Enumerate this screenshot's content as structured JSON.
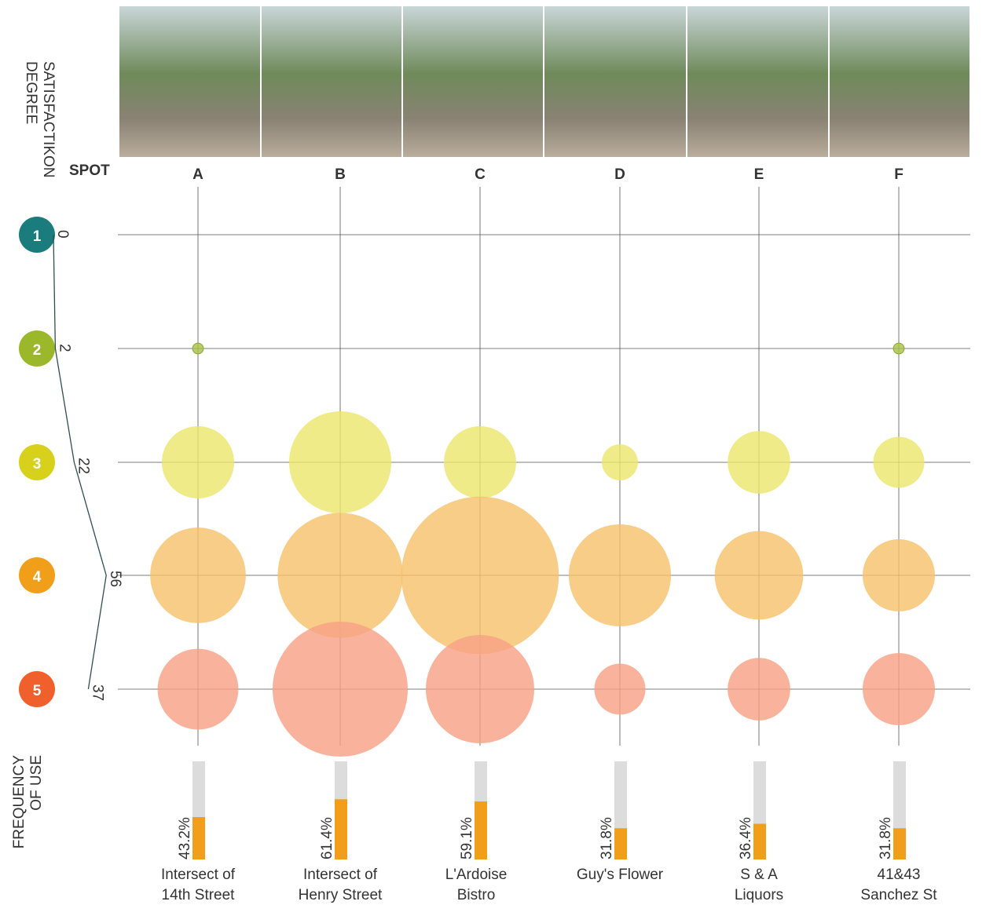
{
  "chart_data": [
    {
      "type": "bubble",
      "y_axis_label": [
        "SATISFACTIKON",
        "DEGREE"
      ],
      "x_axis_label": "SPOT",
      "categories": [
        "A",
        "B",
        "C",
        "D",
        "E",
        "F"
      ],
      "levels": [
        {
          "label": "1",
          "color": "#1b7c7e"
        },
        {
          "label": "2",
          "color": "#9bb82a"
        },
        {
          "label": "3",
          "color": "#d8d11c"
        },
        {
          "label": "4",
          "color": "#f19f1b"
        },
        {
          "label": "5",
          "color": "#f0602c"
        }
      ],
      "totals": [
        0,
        2,
        22,
        56,
        37
      ],
      "series": [
        {
          "color": "#a9c046",
          "values": [
            0,
            0,
            0,
            0,
            0,
            0
          ]
        },
        {
          "color": "#a9c046",
          "values": [
            1,
            0,
            0,
            0,
            0,
            1
          ]
        },
        {
          "color": "#ebe66c",
          "values": [
            4,
            8,
            4,
            1,
            3,
            2
          ]
        },
        {
          "color": "#f6c06a",
          "values": [
            7,
            12,
            19,
            8,
            6,
            4
          ]
        },
        {
          "color": "#f8a084",
          "values": [
            5,
            14,
            9,
            2,
            3,
            4
          ]
        }
      ]
    },
    {
      "type": "bar",
      "title": [
        "FREQUENCY",
        "OF USE"
      ],
      "categories": [
        [
          "Intersect of",
          "14th Street"
        ],
        [
          "Intersect of",
          "Henry Street"
        ],
        [
          "L'Ardoise",
          "Bistro"
        ],
        [
          "Guy's Flower"
        ],
        [
          "S & A",
          "Liquors"
        ],
        [
          "41&43",
          "Sanchez St"
        ]
      ],
      "values": [
        43.2,
        61.4,
        59.1,
        31.8,
        36.4,
        31.8
      ],
      "value_labels": [
        "43.2%",
        "61.4%",
        "59.1%",
        "31.8%",
        "36.4%",
        "31.8%"
      ],
      "ylim": [
        0,
        100
      ],
      "color": "#f19f1b",
      "track_color": "#dcdcdc"
    }
  ]
}
